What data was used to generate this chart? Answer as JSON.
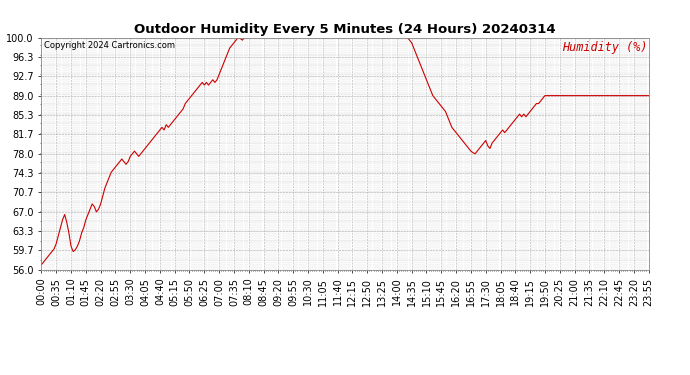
{
  "title": "Outdoor Humidity Every 5 Minutes (24 Hours) 20240314",
  "copyright_text": "Copyright 2024 Cartronics.com",
  "legend_label": "Humidity (%)",
  "line_color": "#cc0000",
  "bg_color": "#ffffff",
  "grid_color": "#aaaaaa",
  "ylabel_color": "#cc0000",
  "title_color": "#000000",
  "copyright_color": "#000000",
  "ylim": [
    56.0,
    100.0
  ],
  "yticks": [
    56.0,
    59.7,
    63.3,
    67.0,
    70.7,
    74.3,
    78.0,
    81.7,
    85.3,
    89.0,
    92.7,
    96.3,
    100.0
  ],
  "humidity_data": [
    57.0,
    57.5,
    58.0,
    58.5,
    59.0,
    59.5,
    60.0,
    61.0,
    62.5,
    64.0,
    65.5,
    66.5,
    65.0,
    63.0,
    60.5,
    59.5,
    59.8,
    60.5,
    61.5,
    63.0,
    64.0,
    65.5,
    66.5,
    67.5,
    68.5,
    68.0,
    67.0,
    67.5,
    68.5,
    70.0,
    71.5,
    72.5,
    73.5,
    74.5,
    75.0,
    75.5,
    76.0,
    76.5,
    77.0,
    76.5,
    76.0,
    76.5,
    77.5,
    78.0,
    78.5,
    78.0,
    77.5,
    78.0,
    78.5,
    79.0,
    79.5,
    80.0,
    80.5,
    81.0,
    81.5,
    82.0,
    82.5,
    83.0,
    82.5,
    83.5,
    83.0,
    83.5,
    84.0,
    84.5,
    85.0,
    85.5,
    86.0,
    86.5,
    87.5,
    88.0,
    88.5,
    89.0,
    89.5,
    90.0,
    90.5,
    91.0,
    91.5,
    91.0,
    91.5,
    91.0,
    91.5,
    92.0,
    91.5,
    92.0,
    93.0,
    94.0,
    95.0,
    96.0,
    97.0,
    98.0,
    98.5,
    99.0,
    99.5,
    100.0,
    99.8,
    99.5,
    100.0,
    100.0,
    100.0,
    100.0,
    100.0,
    100.0,
    100.0,
    100.0,
    100.0,
    100.0,
    100.0,
    100.0,
    100.0,
    100.0,
    100.0,
    100.0,
    100.0,
    100.0,
    100.0,
    100.0,
    100.0,
    100.0,
    100.0,
    100.0,
    100.0,
    100.0,
    100.0,
    100.0,
    100.0,
    100.0,
    100.0,
    100.0,
    100.0,
    100.0,
    100.0,
    100.0,
    100.0,
    100.0,
    100.0,
    100.0,
    100.0,
    100.0,
    100.0,
    100.0,
    100.0,
    100.0,
    100.0,
    100.0,
    100.0,
    100.0,
    100.0,
    100.0,
    100.0,
    100.0,
    100.0,
    100.0,
    100.0,
    100.0,
    100.0,
    100.0,
    100.0,
    100.0,
    100.0,
    100.0,
    100.0,
    100.0,
    100.0,
    100.0,
    100.0,
    100.0,
    100.0,
    100.0,
    100.0,
    100.0,
    100.0,
    100.0,
    100.0,
    100.0,
    99.5,
    99.0,
    98.0,
    97.0,
    96.0,
    95.0,
    94.0,
    93.0,
    92.0,
    91.0,
    90.0,
    89.0,
    88.5,
    88.0,
    87.5,
    87.0,
    86.5,
    86.0,
    85.0,
    84.0,
    83.0,
    82.5,
    82.0,
    81.5,
    81.0,
    80.5,
    80.0,
    79.5,
    79.0,
    78.5,
    78.2,
    78.0,
    78.5,
    79.0,
    79.5,
    80.0,
    80.5,
    79.5,
    79.0,
    80.0,
    80.5,
    81.0,
    81.5,
    82.0,
    82.5,
    82.0,
    82.5,
    83.0,
    83.5,
    84.0,
    84.5,
    85.0,
    85.5,
    85.0,
    85.5,
    85.0,
    85.5,
    86.0,
    86.5,
    87.0,
    87.5,
    87.5,
    88.0,
    88.5,
    89.0,
    89.0,
    89.0,
    89.0,
    89.0,
    89.0,
    89.0,
    89.0,
    89.0,
    89.0,
    89.0,
    89.0,
    89.0,
    89.0,
    89.0,
    89.0,
    89.0,
    89.0,
    89.0,
    89.0,
    89.0,
    89.0,
    89.0,
    89.0,
    89.0,
    89.0,
    89.0,
    89.0,
    89.0,
    89.0,
    89.0,
    89.0,
    89.0,
    89.0,
    89.0,
    89.0,
    89.0,
    89.0,
    89.0,
    89.0,
    89.0,
    89.0,
    89.0,
    89.0,
    89.0,
    89.0,
    89.0,
    89.0,
    89.0,
    89.0
  ],
  "x_tick_labels": [
    "00:00",
    "00:35",
    "01:10",
    "01:45",
    "02:20",
    "02:55",
    "03:30",
    "04:05",
    "04:40",
    "05:15",
    "05:50",
    "06:25",
    "07:00",
    "07:35",
    "08:10",
    "08:45",
    "09:20",
    "09:55",
    "10:30",
    "11:05",
    "11:40",
    "12:15",
    "12:50",
    "13:25",
    "14:00",
    "14:35",
    "15:10",
    "15:45",
    "16:20",
    "16:55",
    "17:30",
    "18:05",
    "18:40",
    "19:15",
    "19:50",
    "20:25",
    "21:00",
    "21:35",
    "22:10",
    "22:45",
    "23:20",
    "23:55"
  ],
  "tick_step": 7,
  "n_points": 288
}
